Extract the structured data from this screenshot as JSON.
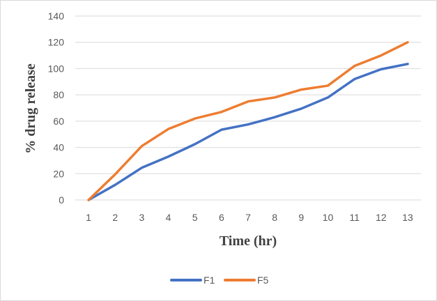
{
  "chart_data": {
    "type": "line",
    "xlabel": "Time (hr)",
    "ylabel": "% drug release",
    "x": [
      1,
      2,
      3,
      4,
      5,
      6,
      7,
      8,
      9,
      10,
      11,
      12,
      13
    ],
    "ylim": [
      0,
      140
    ],
    "yticks": [
      0,
      20,
      40,
      60,
      80,
      100,
      120,
      140
    ],
    "grid": true,
    "legend_position": "bottom",
    "series": [
      {
        "name": "F1",
        "color": "#4472C4",
        "values": [
          0,
          11.5,
          24.5,
          33,
          42.5,
          53.5,
          57.5,
          63,
          69.5,
          78,
          92,
          99.5,
          103.5
        ]
      },
      {
        "name": "F5",
        "color": "#ED7D31",
        "values": [
          0,
          19.5,
          41,
          54,
          62,
          67,
          75,
          78,
          84,
          87,
          102,
          110,
          120
        ]
      }
    ]
  }
}
